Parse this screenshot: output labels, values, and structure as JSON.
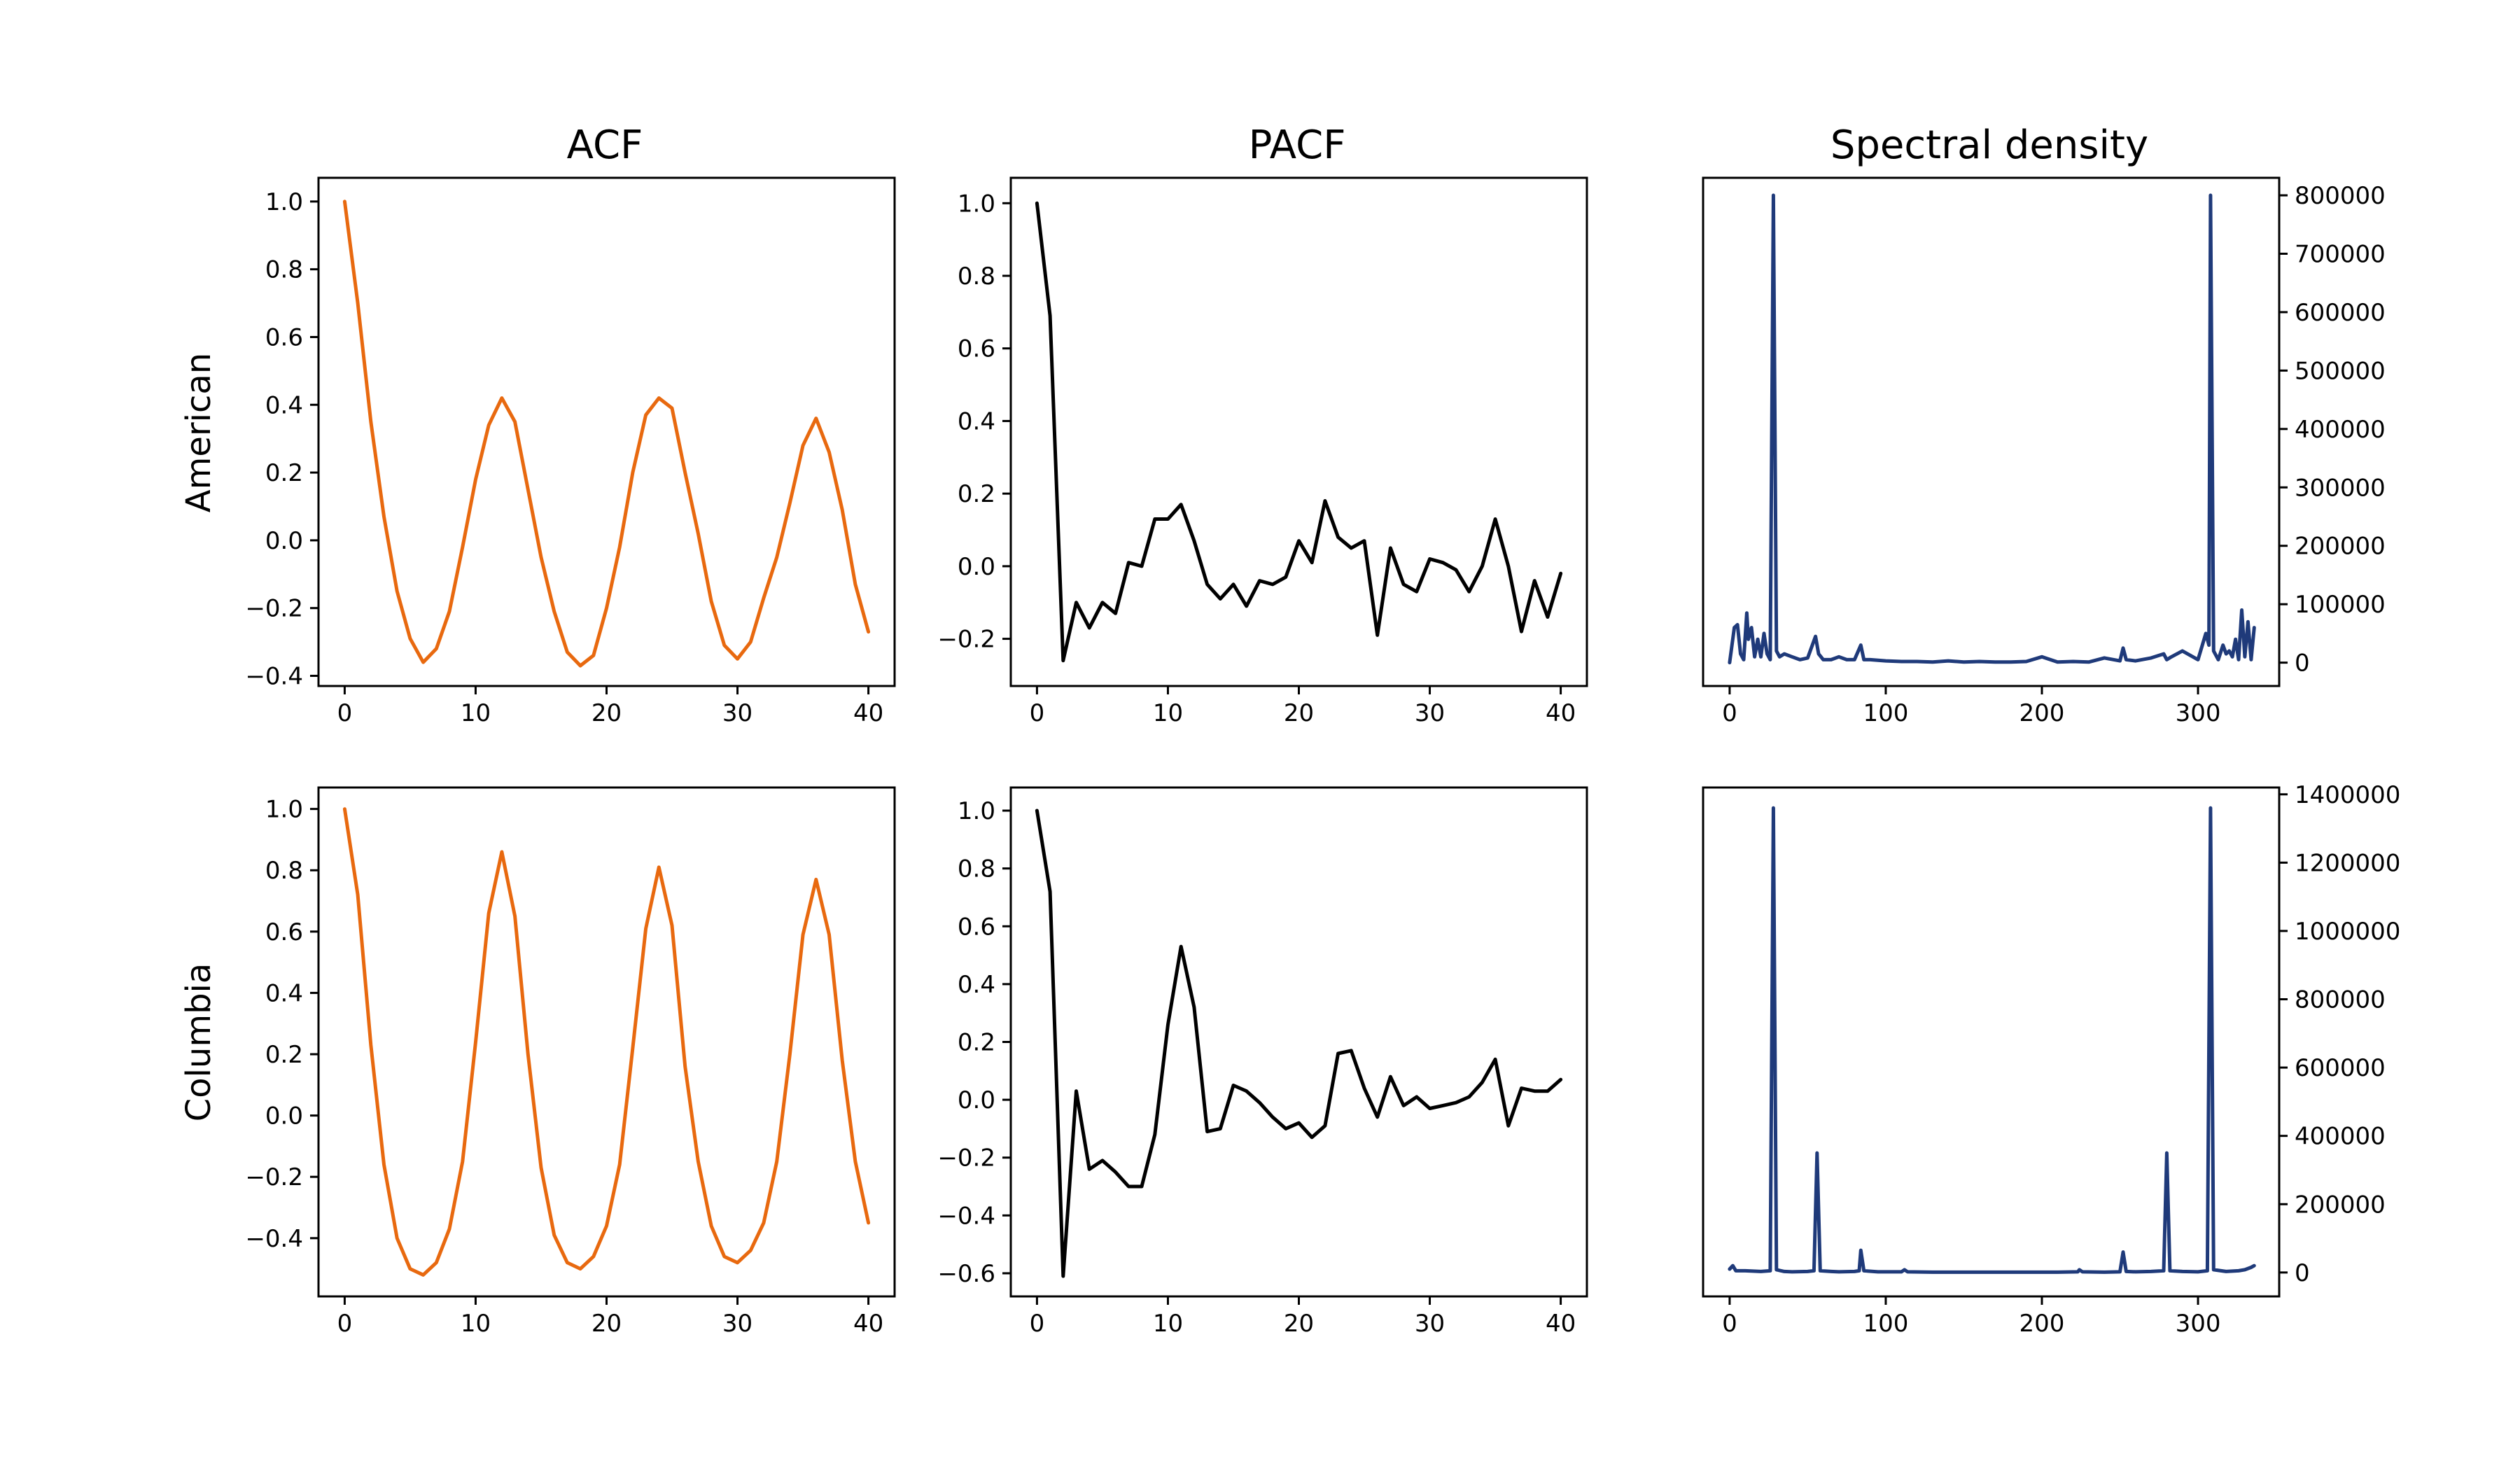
{
  "figure": {
    "column_titles": [
      "ACF",
      "PACF",
      "Spectral density"
    ],
    "row_labels": [
      "American",
      "Columbia"
    ]
  },
  "chart_data": [
    {
      "id": "acf-american",
      "type": "line",
      "color": "#e8690f",
      "title": "",
      "xlabel": "",
      "ylabel": "",
      "xlim": [
        -2,
        42
      ],
      "ylim": [
        -0.43,
        1.07
      ],
      "xticks": [
        0,
        10,
        20,
        30,
        40
      ],
      "xtick_labels": [
        "0",
        "10",
        "20",
        "30",
        "40"
      ],
      "yticks": [
        -0.4,
        -0.2,
        0.0,
        0.2,
        0.4,
        0.6,
        0.8,
        1.0
      ],
      "ytick_labels": [
        "−0.4",
        "−0.2",
        "0.0",
        "0.2",
        "0.4",
        "0.6",
        "0.8",
        "1.0"
      ],
      "y_axis_side": "left",
      "x": [
        0,
        1,
        2,
        3,
        4,
        5,
        6,
        7,
        8,
        9,
        10,
        11,
        12,
        13,
        14,
        15,
        16,
        17,
        18,
        19,
        20,
        21,
        22,
        23,
        24,
        25,
        26,
        27,
        28,
        29,
        30,
        31,
        32,
        33,
        34,
        35,
        36,
        37,
        38,
        39,
        40
      ],
      "y": [
        1.0,
        0.7,
        0.35,
        0.07,
        -0.15,
        -0.29,
        -0.36,
        -0.32,
        -0.21,
        -0.02,
        0.18,
        0.34,
        0.42,
        0.35,
        0.15,
        -0.05,
        -0.21,
        -0.33,
        -0.37,
        -0.34,
        -0.2,
        -0.02,
        0.2,
        0.37,
        0.42,
        0.39,
        0.2,
        0.02,
        -0.18,
        -0.31,
        -0.35,
        -0.3,
        -0.17,
        -0.05,
        0.11,
        0.28,
        0.36,
        0.26,
        0.09,
        -0.13,
        -0.27
      ]
    },
    {
      "id": "pacf-american",
      "type": "line",
      "color": "#000000",
      "title": "",
      "xlabel": "",
      "ylabel": "",
      "xlim": [
        -2,
        42
      ],
      "ylim": [
        -0.33,
        1.07
      ],
      "xticks": [
        0,
        10,
        20,
        30,
        40
      ],
      "xtick_labels": [
        "0",
        "10",
        "20",
        "30",
        "40"
      ],
      "yticks": [
        -0.2,
        0.0,
        0.2,
        0.4,
        0.6,
        0.8,
        1.0
      ],
      "ytick_labels": [
        "−0.2",
        "0.0",
        "0.2",
        "0.4",
        "0.6",
        "0.8",
        "1.0"
      ],
      "y_axis_side": "left",
      "x": [
        0,
        1,
        2,
        3,
        4,
        5,
        6,
        7,
        8,
        9,
        10,
        11,
        12,
        13,
        14,
        15,
        16,
        17,
        18,
        19,
        20,
        21,
        22,
        23,
        24,
        25,
        26,
        27,
        28,
        29,
        30,
        31,
        32,
        33,
        34,
        35,
        36,
        37,
        38,
        39,
        40
      ],
      "y": [
        1.0,
        0.69,
        -0.26,
        -0.1,
        -0.17,
        -0.1,
        -0.13,
        0.01,
        0.0,
        0.13,
        0.13,
        0.17,
        0.07,
        -0.05,
        -0.09,
        -0.05,
        -0.11,
        -0.04,
        -0.05,
        -0.03,
        0.07,
        0.01,
        0.18,
        0.08,
        0.05,
        0.07,
        -0.19,
        0.05,
        -0.05,
        -0.07,
        0.02,
        0.01,
        -0.01,
        -0.07,
        0.0,
        0.13,
        0.0,
        -0.18,
        -0.04,
        -0.14,
        -0.02
      ]
    },
    {
      "id": "spectral-american",
      "type": "line",
      "color": "#1f3a7a",
      "title": "",
      "xlabel": "",
      "ylabel": "",
      "xlim": [
        -17,
        352
      ],
      "ylim": [
        -40000,
        830000
      ],
      "xticks": [
        0,
        100,
        200,
        300
      ],
      "xtick_labels": [
        "0",
        "100",
        "200",
        "300"
      ],
      "yticks": [
        0,
        100000,
        200000,
        300000,
        400000,
        500000,
        600000,
        700000,
        800000
      ],
      "ytick_labels": [
        "0",
        "100000",
        "200000",
        "300000",
        "400000",
        "500000",
        "600000",
        "700000",
        "800000"
      ],
      "y_axis_side": "right",
      "x": [
        0,
        3,
        5,
        7,
        9,
        11,
        12,
        14,
        16,
        18,
        20,
        22,
        24,
        26,
        28,
        30,
        32,
        35,
        40,
        45,
        50,
        55,
        57,
        60,
        65,
        70,
        75,
        80,
        84,
        86,
        90,
        100,
        110,
        120,
        130,
        140,
        150,
        160,
        170,
        180,
        190,
        200,
        210,
        220,
        230,
        240,
        250,
        252,
        254,
        260,
        270,
        278,
        280,
        283,
        290,
        300,
        305,
        307,
        308,
        310,
        313,
        316,
        318,
        320,
        322,
        324,
        326,
        328,
        330,
        332,
        334,
        336
      ],
      "y": [
        0,
        60000,
        65000,
        15000,
        5000,
        85000,
        40000,
        60000,
        10000,
        40000,
        10000,
        50000,
        15000,
        5000,
        800000,
        20000,
        10000,
        15000,
        10000,
        5000,
        8000,
        45000,
        15000,
        5000,
        5000,
        10000,
        5000,
        5000,
        30000,
        5000,
        5000,
        3000,
        2000,
        2000,
        1000,
        3000,
        1000,
        2000,
        1000,
        1000,
        2000,
        10000,
        1000,
        2000,
        1000,
        8000,
        3000,
        25000,
        5000,
        3000,
        8000,
        15000,
        5000,
        10000,
        20000,
        5000,
        50000,
        30000,
        800000,
        20000,
        5000,
        30000,
        15000,
        20000,
        10000,
        40000,
        5000,
        90000,
        10000,
        70000,
        5000,
        60000
      ]
    },
    {
      "id": "acf-columbia",
      "type": "line",
      "color": "#e8690f",
      "title": "",
      "xlabel": "",
      "ylabel": "",
      "xlim": [
        -2,
        42
      ],
      "ylim": [
        -0.59,
        1.07
      ],
      "xticks": [
        0,
        10,
        20,
        30,
        40
      ],
      "xtick_labels": [
        "0",
        "10",
        "20",
        "30",
        "40"
      ],
      "yticks": [
        -0.4,
        -0.2,
        0.0,
        0.2,
        0.4,
        0.6,
        0.8,
        1.0
      ],
      "ytick_labels": [
        "−0.4",
        "−0.2",
        "0.0",
        "0.2",
        "0.4",
        "0.6",
        "0.8",
        "1.0"
      ],
      "y_axis_side": "left",
      "x": [
        0,
        1,
        2,
        3,
        4,
        5,
        6,
        7,
        8,
        9,
        10,
        11,
        12,
        13,
        14,
        15,
        16,
        17,
        18,
        19,
        20,
        21,
        22,
        23,
        24,
        25,
        26,
        27,
        28,
        29,
        30,
        31,
        32,
        33,
        34,
        35,
        36,
        37,
        38,
        39,
        40
      ],
      "y": [
        1.0,
        0.72,
        0.23,
        -0.16,
        -0.4,
        -0.5,
        -0.52,
        -0.48,
        -0.37,
        -0.15,
        0.24,
        0.66,
        0.86,
        0.65,
        0.2,
        -0.17,
        -0.39,
        -0.48,
        -0.5,
        -0.46,
        -0.36,
        -0.16,
        0.22,
        0.61,
        0.81,
        0.62,
        0.16,
        -0.15,
        -0.36,
        -0.46,
        -0.48,
        -0.44,
        -0.35,
        -0.15,
        0.2,
        0.59,
        0.77,
        0.59,
        0.18,
        -0.15,
        -0.35
      ]
    },
    {
      "id": "pacf-columbia",
      "type": "line",
      "color": "#000000",
      "title": "",
      "xlabel": "",
      "ylabel": "",
      "xlim": [
        -2,
        42
      ],
      "ylim": [
        -0.68,
        1.08
      ],
      "xticks": [
        0,
        10,
        20,
        30,
        40
      ],
      "xtick_labels": [
        "0",
        "10",
        "20",
        "30",
        "40"
      ],
      "yticks": [
        -0.6,
        -0.4,
        -0.2,
        0.0,
        0.2,
        0.4,
        0.6,
        0.8,
        1.0
      ],
      "ytick_labels": [
        "−0.6",
        "−0.4",
        "−0.2",
        "0.0",
        "0.2",
        "0.4",
        "0.6",
        "0.8",
        "1.0"
      ],
      "y_axis_side": "left",
      "x": [
        0,
        1,
        2,
        3,
        4,
        5,
        6,
        7,
        8,
        9,
        10,
        11,
        12,
        13,
        14,
        15,
        16,
        17,
        18,
        19,
        20,
        21,
        22,
        23,
        24,
        25,
        26,
        27,
        28,
        29,
        30,
        31,
        32,
        33,
        34,
        35,
        36,
        37,
        38,
        39,
        40
      ],
      "y": [
        1.0,
        0.72,
        -0.61,
        0.03,
        -0.24,
        -0.21,
        -0.25,
        -0.3,
        -0.3,
        -0.12,
        0.26,
        0.53,
        0.32,
        -0.11,
        -0.1,
        0.05,
        0.03,
        -0.01,
        -0.06,
        -0.1,
        -0.08,
        -0.13,
        -0.09,
        0.16,
        0.17,
        0.04,
        -0.06,
        0.08,
        -0.02,
        0.01,
        -0.03,
        -0.02,
        -0.01,
        0.01,
        0.06,
        0.14,
        -0.09,
        0.04,
        0.03,
        0.03,
        0.07
      ]
    },
    {
      "id": "spectral-columbia",
      "type": "line",
      "color": "#1f3a7a",
      "title": "",
      "xlabel": "",
      "ylabel": "",
      "xlim": [
        -17,
        352
      ],
      "ylim": [
        -70000,
        1420000
      ],
      "xticks": [
        0,
        100,
        200,
        300
      ],
      "xtick_labels": [
        "0",
        "100",
        "200",
        "300"
      ],
      "yticks": [
        0,
        200000,
        400000,
        600000,
        800000,
        1000000,
        1200000,
        1400000
      ],
      "ytick_labels": [
        "0",
        "200000",
        "400000",
        "600000",
        "800000",
        "1000000",
        "1200000",
        "1400000"
      ],
      "y_axis_side": "right",
      "x": [
        0,
        2,
        4,
        10,
        20,
        26,
        28,
        30,
        35,
        40,
        50,
        54,
        56,
        58,
        65,
        70,
        80,
        83,
        84,
        86,
        95,
        110,
        112,
        114,
        130,
        150,
        170,
        190,
        210,
        223,
        224,
        226,
        240,
        250,
        252,
        254,
        260,
        270,
        278,
        280,
        282,
        290,
        300,
        306,
        308,
        310,
        318,
        326,
        330,
        334,
        336
      ],
      "y": [
        10000,
        20000,
        5000,
        5000,
        3000,
        5000,
        1360000,
        8000,
        3000,
        2000,
        3000,
        5000,
        350000,
        5000,
        3000,
        2000,
        3000,
        5000,
        65000,
        5000,
        2000,
        2000,
        8000,
        2000,
        1000,
        1000,
        1000,
        1000,
        1000,
        2000,
        8000,
        2000,
        1000,
        2000,
        60000,
        3000,
        2000,
        3000,
        5000,
        350000,
        5000,
        3000,
        2000,
        5000,
        1360000,
        8000,
        3000,
        5000,
        8000,
        15000,
        20000
      ]
    }
  ]
}
